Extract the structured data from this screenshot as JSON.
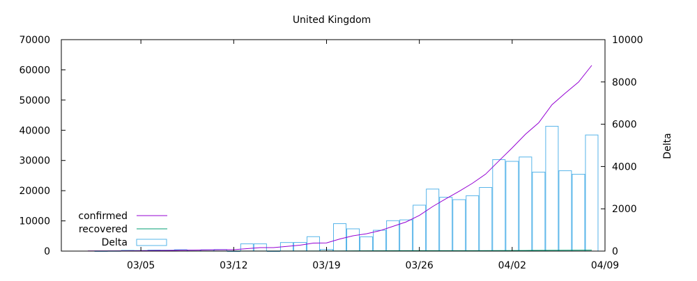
{
  "chart_data": {
    "type": "bar",
    "title": "United Kingdom",
    "xlabel": "",
    "ylabel": "",
    "y2label": "Delta",
    "x_domain": [
      "2020-02-28",
      "2020-04-09"
    ],
    "x_ticks": [
      {
        "date": "2020-03-05",
        "label": "03/05"
      },
      {
        "date": "2020-03-12",
        "label": "03/12"
      },
      {
        "date": "2020-03-19",
        "label": "03/19"
      },
      {
        "date": "2020-03-26",
        "label": "03/26"
      },
      {
        "date": "2020-04-02",
        "label": "04/02"
      },
      {
        "date": "2020-04-09",
        "label": "04/09"
      }
    ],
    "ylim": [
      0,
      70000
    ],
    "yticks": [
      "0",
      "10000",
      "20000",
      "30000",
      "40000",
      "50000",
      "60000",
      "70000"
    ],
    "y2lim": [
      0,
      10000
    ],
    "y2ticks": [
      "0",
      "2000",
      "4000",
      "6000",
      "8000",
      "10000"
    ],
    "legend_position": "bottom-left",
    "series": [
      {
        "name": "confirmed",
        "type": "line",
        "axis": "left",
        "color": "#9400d3",
        "points": [
          [
            "2020-03-01",
            36
          ],
          [
            "2020-03-02",
            40
          ],
          [
            "2020-03-03",
            51
          ],
          [
            "2020-03-04",
            87
          ],
          [
            "2020-03-05",
            116
          ],
          [
            "2020-03-06",
            164
          ],
          [
            "2020-03-07",
            207
          ],
          [
            "2020-03-08",
            274
          ],
          [
            "2020-03-09",
            322
          ],
          [
            "2020-03-10",
            384
          ],
          [
            "2020-03-11",
            459
          ],
          [
            "2020-03-12",
            459
          ],
          [
            "2020-03-13",
            802
          ],
          [
            "2020-03-14",
            1144
          ],
          [
            "2020-03-15",
            1145
          ],
          [
            "2020-03-16",
            1551
          ],
          [
            "2020-03-17",
            1960
          ],
          [
            "2020-03-18",
            2642
          ],
          [
            "2020-03-19",
            2716
          ],
          [
            "2020-03-20",
            4014
          ],
          [
            "2020-03-21",
            5067
          ],
          [
            "2020-03-22",
            5741
          ],
          [
            "2020-03-23",
            6726
          ],
          [
            "2020-03-24",
            8164
          ],
          [
            "2020-03-25",
            9640
          ],
          [
            "2020-03-26",
            11812
          ],
          [
            "2020-03-27",
            14745
          ],
          [
            "2020-03-28",
            17312
          ],
          [
            "2020-03-29",
            19780
          ],
          [
            "2020-03-30",
            22453
          ],
          [
            "2020-03-31",
            25481
          ],
          [
            "2020-04-01",
            29865
          ],
          [
            "2020-04-02",
            34173
          ],
          [
            "2020-04-03",
            38689
          ],
          [
            "2020-04-04",
            42477
          ],
          [
            "2020-04-05",
            48436
          ],
          [
            "2020-04-06",
            52279
          ],
          [
            "2020-04-07",
            55949
          ],
          [
            "2020-04-08",
            61474
          ]
        ]
      },
      {
        "name": "recovered",
        "type": "line",
        "axis": "left",
        "color": "#009e73",
        "points": [
          [
            "2020-03-01",
            8
          ],
          [
            "2020-03-05",
            8
          ],
          [
            "2020-03-10",
            18
          ],
          [
            "2020-03-15",
            21
          ],
          [
            "2020-03-20",
            65
          ],
          [
            "2020-03-25",
            135
          ],
          [
            "2020-03-30",
            135
          ],
          [
            "2020-04-03",
            208
          ],
          [
            "2020-04-08",
            325
          ]
        ]
      },
      {
        "name": "Delta",
        "type": "bar",
        "axis": "right",
        "color": "#56b4e9",
        "bars": [
          [
            "2020-03-02",
            4
          ],
          [
            "2020-03-03",
            11
          ],
          [
            "2020-03-04",
            36
          ],
          [
            "2020-03-05",
            29
          ],
          [
            "2020-03-06",
            48
          ],
          [
            "2020-03-07",
            43
          ],
          [
            "2020-03-08",
            67
          ],
          [
            "2020-03-09",
            48
          ],
          [
            "2020-03-10",
            62
          ],
          [
            "2020-03-11",
            75
          ],
          [
            "2020-03-12",
            0
          ],
          [
            "2020-03-13",
            343
          ],
          [
            "2020-03-14",
            342
          ],
          [
            "2020-03-15",
            1
          ],
          [
            "2020-03-16",
            406
          ],
          [
            "2020-03-17",
            409
          ],
          [
            "2020-03-18",
            682
          ],
          [
            "2020-03-19",
            74
          ],
          [
            "2020-03-20",
            1298
          ],
          [
            "2020-03-21",
            1053
          ],
          [
            "2020-03-22",
            674
          ],
          [
            "2020-03-23",
            985
          ],
          [
            "2020-03-24",
            1438
          ],
          [
            "2020-03-25",
            1476
          ],
          [
            "2020-03-26",
            2172
          ],
          [
            "2020-03-27",
            2933
          ],
          [
            "2020-03-28",
            2546
          ],
          [
            "2020-03-29",
            2433
          ],
          [
            "2020-03-30",
            2619
          ],
          [
            "2020-03-31",
            3009
          ],
          [
            "2020-04-01",
            4324
          ],
          [
            "2020-04-02",
            4244
          ],
          [
            "2020-04-03",
            4450
          ],
          [
            "2020-04-04",
            3735
          ],
          [
            "2020-04-05",
            5903
          ],
          [
            "2020-04-06",
            3802
          ],
          [
            "2020-04-07",
            3634
          ],
          [
            "2020-04-08",
            5491
          ]
        ]
      }
    ]
  }
}
